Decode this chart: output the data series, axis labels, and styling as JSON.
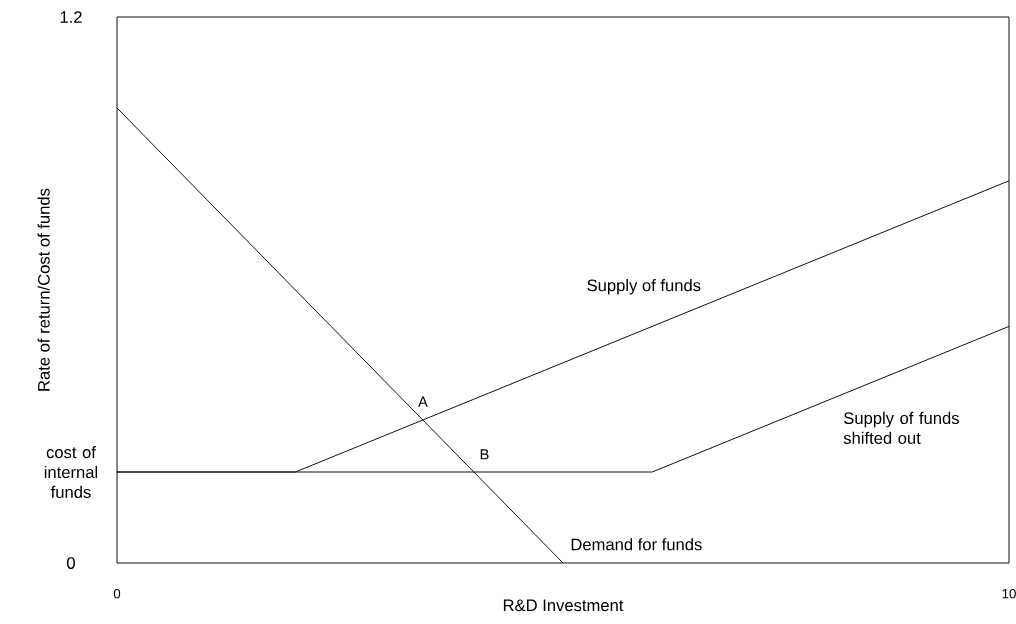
{
  "chart_data": {
    "type": "line",
    "xlabel": "R&D Investment",
    "ylabel": "Rate of return/Cost of funds",
    "series": [
      {
        "name": "Demand for funds",
        "color": "#000000",
        "x": [
          0,
          5
        ],
        "values": [
          1,
          0
        ]
      },
      {
        "name": "Supply of funds",
        "color": "#000000",
        "x": [
          0,
          2,
          10
        ],
        "values": [
          0.2,
          0.2,
          0.84
        ]
      },
      {
        "name": "Supply of funds shifted out",
        "color": "#000000",
        "x": [
          0,
          6,
          10
        ],
        "values": [
          0.2,
          0.2,
          0.52
        ]
      }
    ],
    "xlim": [
      0,
      10
    ],
    "ylim": [
      0,
      1.2
    ],
    "xticks": [
      0,
      10
    ],
    "yticks": [
      0,
      {
        "value": 0.2,
        "label": "cost of internal funds"
      },
      1.2
    ],
    "annotations": [
      {
        "text": "A",
        "x": 3.43,
        "y": 0.31
      },
      {
        "text": "B",
        "x": 4,
        "y": 0.2
      }
    ],
    "grid": false,
    "legend": false,
    "marker": "none",
    "line_style": "solid"
  }
}
